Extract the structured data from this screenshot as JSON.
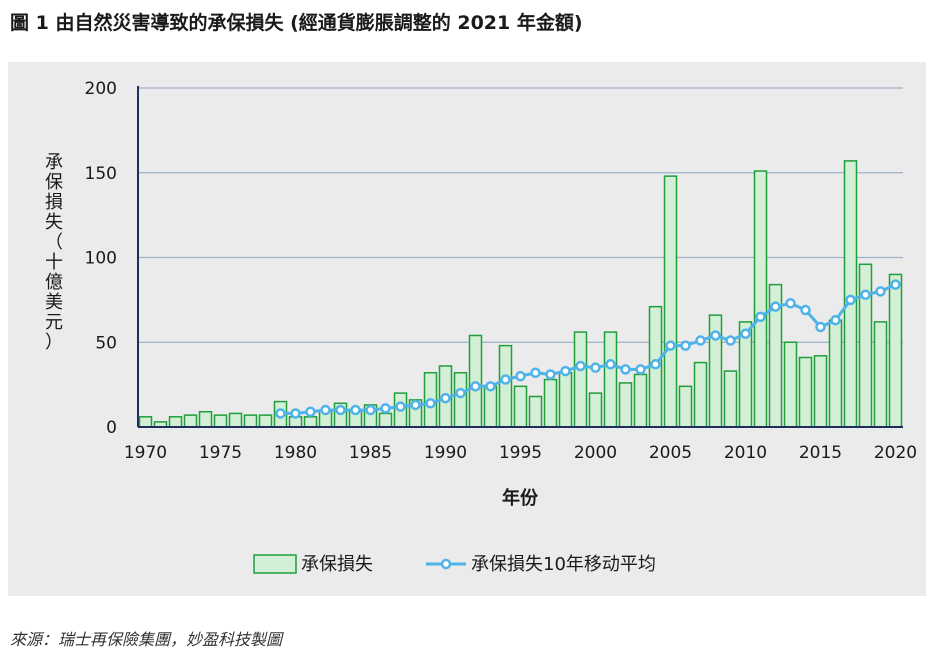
{
  "figure": {
    "title": "圖 1 由自然災害導致的承保損失 (經通貨膨脹調整的 2021 年金額)",
    "source": "來源：瑞士再保險集團，妙盈科技製圖"
  },
  "chart_data": {
    "type": "bar",
    "xlabel": "年份",
    "ylabel": "承保損失（十億美元）",
    "ylim": [
      0,
      200
    ],
    "yticks": [
      0,
      50,
      100,
      150,
      200
    ],
    "xticks": [
      1970,
      1975,
      1980,
      1985,
      1990,
      1995,
      2000,
      2005,
      2010,
      2015,
      2020
    ],
    "grid": true,
    "legend_position": "bottom-center",
    "colors": {
      "bar_fill": "#d3efd6",
      "bar_stroke": "#1f9e3b",
      "line": "#4fb3ea",
      "grid": "#9fb0c6",
      "axis": "#1f2f5c"
    },
    "x": [
      1970,
      1971,
      1972,
      1973,
      1974,
      1975,
      1976,
      1977,
      1978,
      1979,
      1980,
      1981,
      1982,
      1983,
      1984,
      1985,
      1986,
      1987,
      1988,
      1989,
      1990,
      1991,
      1992,
      1993,
      1994,
      1995,
      1996,
      1997,
      1998,
      1999,
      2000,
      2001,
      2002,
      2003,
      2004,
      2005,
      2006,
      2007,
      2008,
      2009,
      2010,
      2011,
      2012,
      2013,
      2014,
      2015,
      2016,
      2017,
      2018,
      2019,
      2020
    ],
    "series": [
      {
        "name": "承保損失",
        "type": "bar",
        "values": [
          6,
          3,
          6,
          7,
          9,
          7,
          8,
          7,
          7,
          15,
          6,
          6,
          10,
          14,
          10,
          13,
          8,
          20,
          16,
          32,
          36,
          32,
          54,
          24,
          48,
          24,
          18,
          28,
          32,
          56,
          20,
          56,
          26,
          31,
          71,
          148,
          24,
          38,
          66,
          33,
          62,
          151,
          84,
          50,
          41,
          42,
          63,
          157,
          96,
          62,
          90
        ]
      },
      {
        "name": "承保損失10年移动平均",
        "type": "line",
        "values": [
          null,
          null,
          null,
          null,
          null,
          null,
          null,
          null,
          null,
          8,
          8,
          9,
          10,
          10,
          10,
          10,
          11,
          12,
          13,
          14,
          17,
          20,
          24,
          24,
          28,
          30,
          32,
          31,
          33,
          36,
          35,
          37,
          34,
          34,
          37,
          48,
          48,
          51,
          54,
          51,
          55,
          65,
          71,
          73,
          69,
          59,
          63,
          75,
          78,
          80,
          84
        ]
      }
    ]
  }
}
